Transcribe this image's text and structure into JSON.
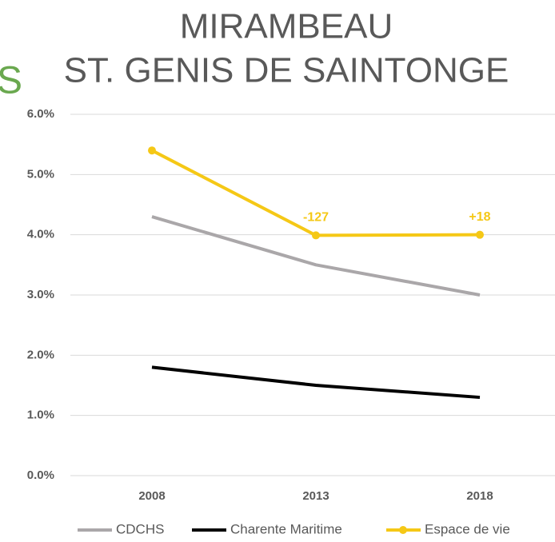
{
  "chart_data": {
    "type": "line",
    "title": "MIRAMBEAU",
    "subtitle": "ST. GENIS DE SAINTONGE",
    "side_text": "S",
    "categories": [
      "2008",
      "2013",
      "2018"
    ],
    "series": [
      {
        "name": "CDCHS",
        "color": "#aaa7a9",
        "values": [
          4.3,
          3.5,
          3.0
        ],
        "markers": false
      },
      {
        "name": "Charente Maritime",
        "color": "#000000",
        "values": [
          1.8,
          1.5,
          1.3
        ],
        "markers": false
      },
      {
        "name": "Espace de vie",
        "color": "#f5c816",
        "values": [
          5.4,
          3.99,
          4.0
        ],
        "markers": true
      }
    ],
    "annotations": [
      {
        "series": 2,
        "index": 1,
        "text": "-127"
      },
      {
        "series": 2,
        "index": 2,
        "text": "+18"
      }
    ],
    "ylim": [
      0,
      6
    ],
    "yticks": [
      {
        "value": 0,
        "label": "0.0%"
      },
      {
        "value": 1,
        "label": "1.0%"
      },
      {
        "value": 2,
        "label": "2.0%"
      },
      {
        "value": 3,
        "label": "3.0%"
      },
      {
        "value": 4,
        "label": "4.0%"
      },
      {
        "value": 5,
        "label": "5.0%"
      },
      {
        "value": 6,
        "label": "6.0%"
      }
    ],
    "grid": true,
    "legend": "bottom"
  }
}
